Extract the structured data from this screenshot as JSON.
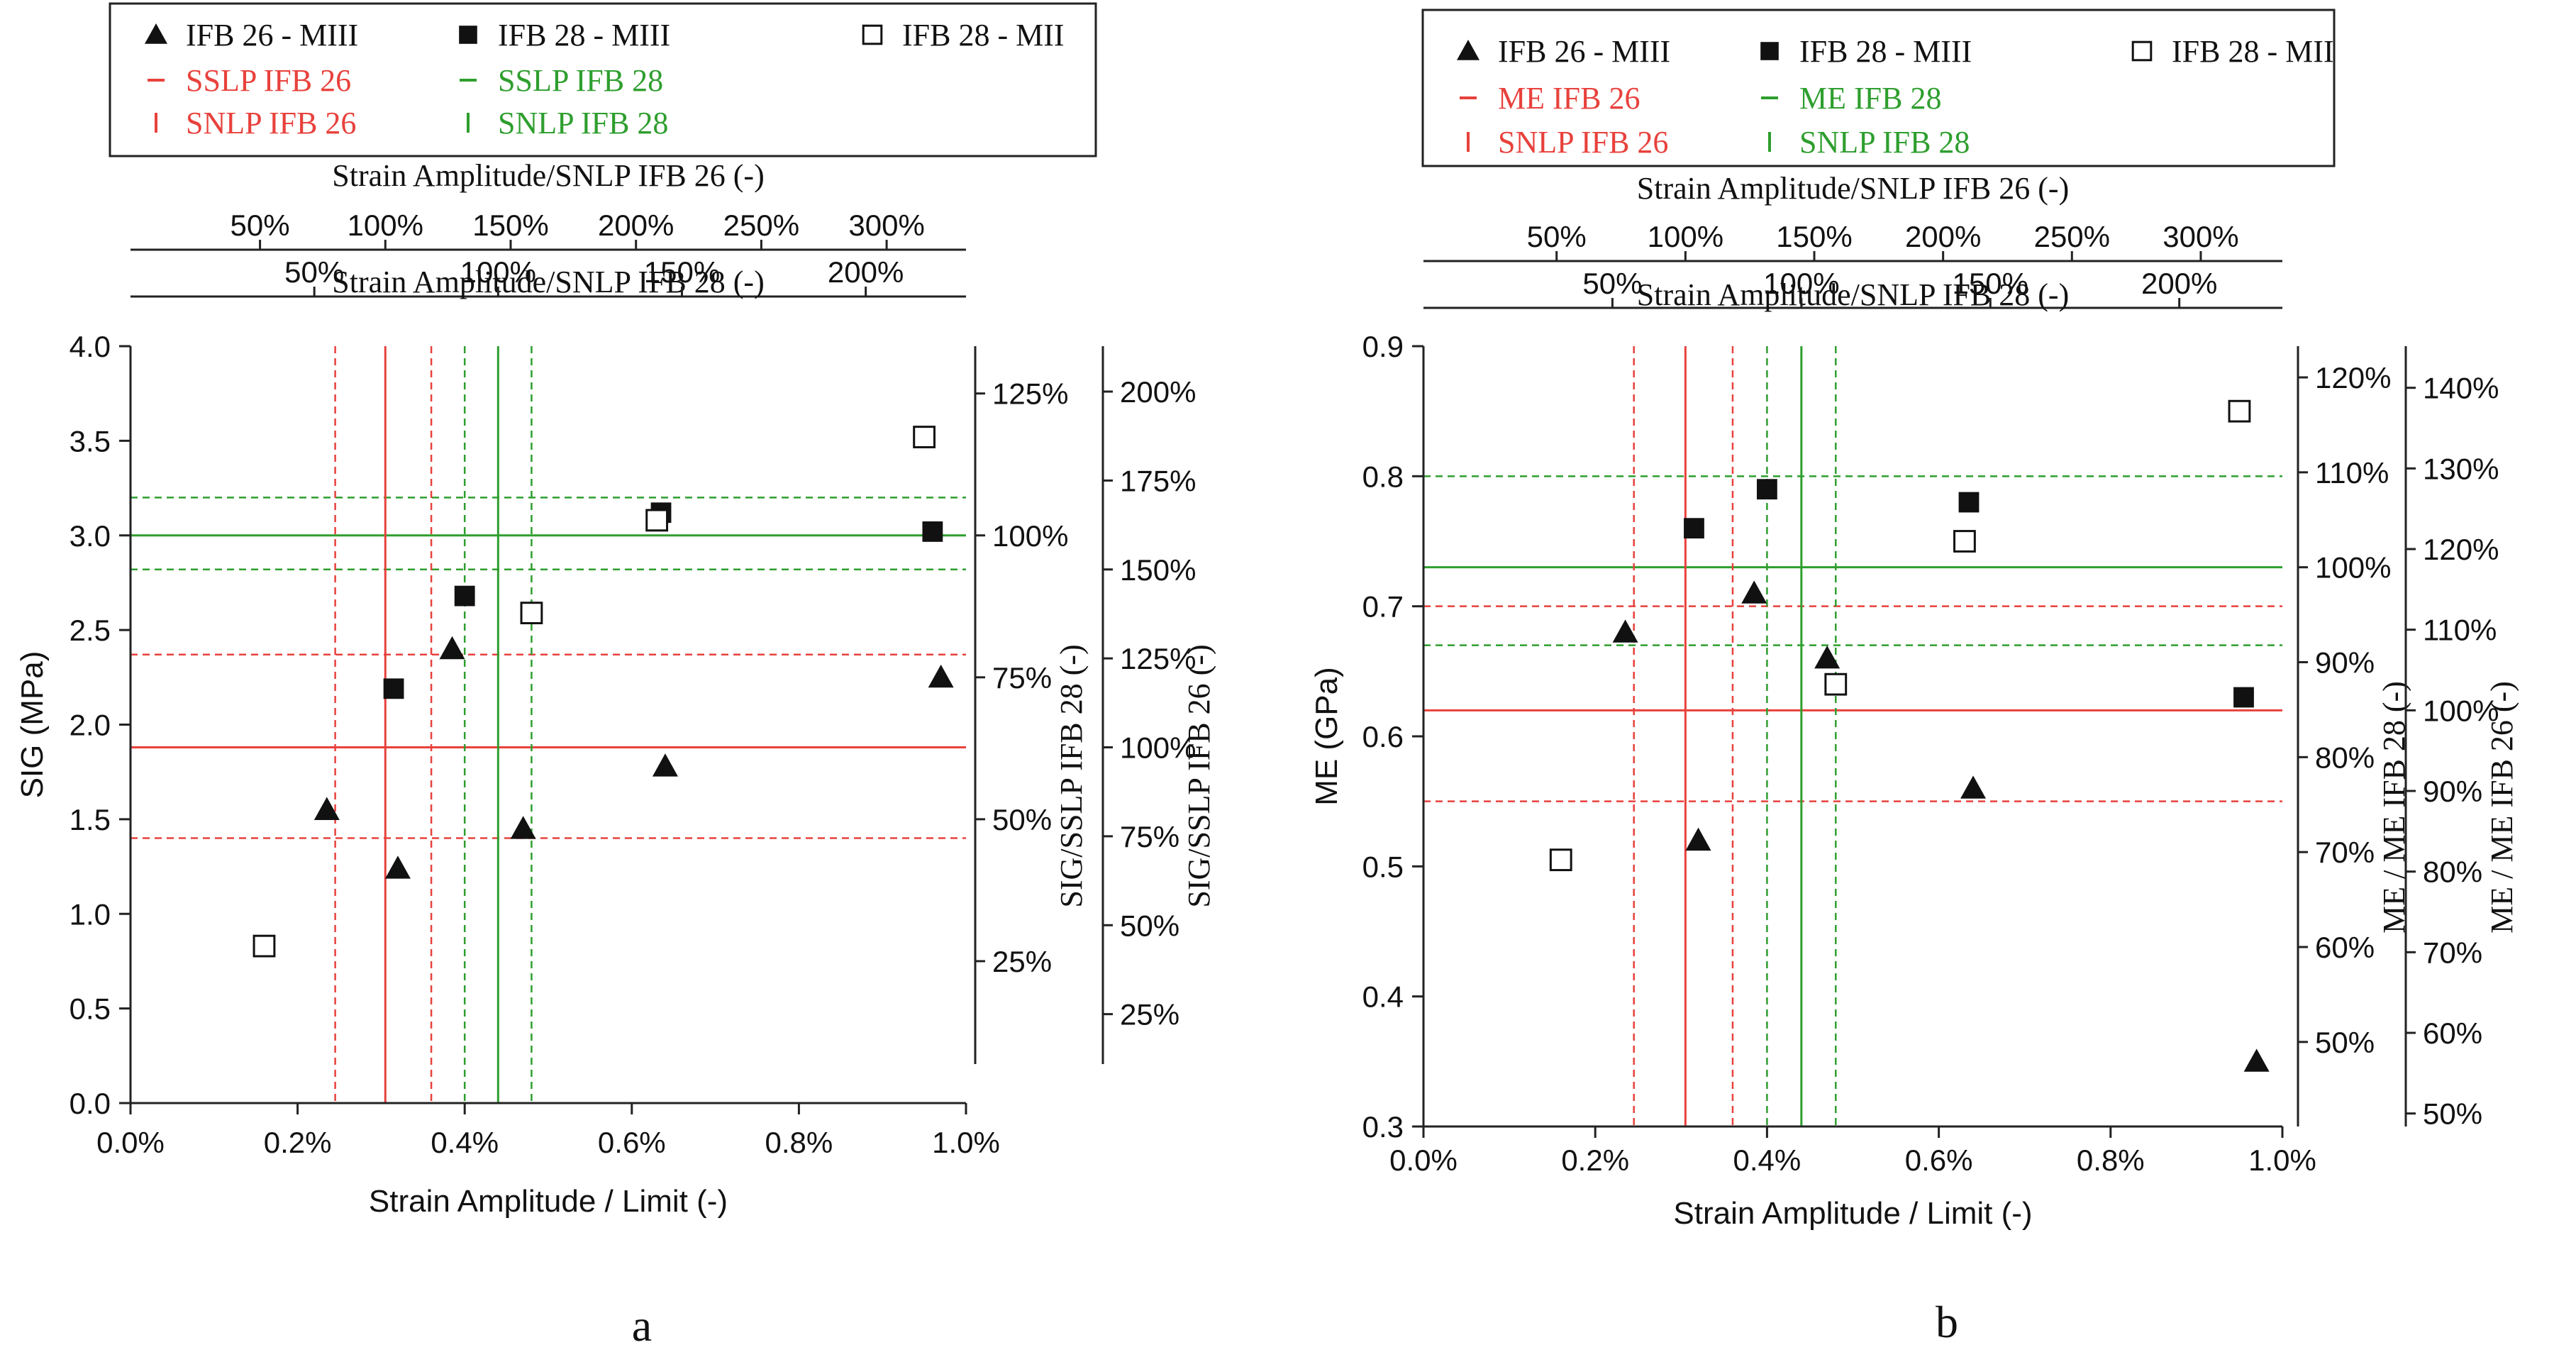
{
  "colors": {
    "red": "#e8413c",
    "green": "#2e9e2e",
    "black": "#111111"
  },
  "chart_data": [
    {
      "panel_label": "a",
      "type": "scatter",
      "xlabel": "Strain Amplitude / Limit (-)",
      "ylabel": "SIG (MPa)",
      "xlim": [
        0.0,
        1.0
      ],
      "ylim": [
        0.0,
        4.0
      ],
      "x_ticks": [
        "0.0%",
        "0.2%",
        "0.4%",
        "0.6%",
        "0.8%",
        "1.0%"
      ],
      "y_ticks": [
        "0.0",
        "0.5",
        "1.0",
        "1.5",
        "2.0",
        "2.5",
        "3.0",
        "3.5",
        "4.0"
      ],
      "top_axis_26": {
        "label": "Strain Amplitude/SNLP IFB 26 (-)",
        "ticks": [
          {
            "label": "50%",
            "x": 0.155
          },
          {
            "label": "100%",
            "x": 0.305
          },
          {
            "label": "150%",
            "x": 0.455
          },
          {
            "label": "200%",
            "x": 0.605
          },
          {
            "label": "250%",
            "x": 0.755
          },
          {
            "label": "300%",
            "x": 0.905
          }
        ]
      },
      "top_axis_28": {
        "label": "Strain Amplitude/SNLP IFB 28 (-)",
        "ticks": [
          {
            "label": "50%",
            "x": 0.22
          },
          {
            "label": "100%",
            "x": 0.44
          },
          {
            "label": "150%",
            "x": 0.66
          },
          {
            "label": "200%",
            "x": 0.88
          }
        ]
      },
      "right_axis_28": {
        "label": "SIG/SSLP IFB 28 (-)",
        "ticks": [
          {
            "label": "25%",
            "y": 0.75
          },
          {
            "label": "50%",
            "y": 1.5
          },
          {
            "label": "75%",
            "y": 2.25
          },
          {
            "label": "100%",
            "y": 3.0
          },
          {
            "label": "125%",
            "y": 3.75
          }
        ]
      },
      "right_axis_26": {
        "label": "SIG/SSLP IFB 26 (-)",
        "ticks": [
          {
            "label": "25%",
            "y": 0.47
          },
          {
            "label": "50%",
            "y": 0.94
          },
          {
            "label": "75%",
            "y": 1.41
          },
          {
            "label": "100%",
            "y": 1.88
          },
          {
            "label": "125%",
            "y": 2.35
          },
          {
            "label": "150%",
            "y": 2.82
          },
          {
            "label": "175%",
            "y": 3.29
          },
          {
            "label": "200%",
            "y": 3.76
          }
        ]
      },
      "legend": {
        "items": [
          {
            "label": "IFB 26 - MIII",
            "marker": "triangle",
            "color": "#111111"
          },
          {
            "label": "IFB 28 - MIII",
            "marker": "square-filled",
            "color": "#111111"
          },
          {
            "label": "IFB 28 - MII",
            "marker": "square-open",
            "color": "#111111"
          },
          {
            "label": "SSLP IFB 26",
            "marker": "hline",
            "color": "#e8413c"
          },
          {
            "label": "SSLP IFB 28",
            "marker": "hline",
            "color": "#2e9e2e"
          },
          {
            "label": "",
            "marker": "none",
            "color": "#111111"
          },
          {
            "label": "SNLP IFB 26",
            "marker": "vline",
            "color": "#e8413c"
          },
          {
            "label": "SNLP IFB 28",
            "marker": "vline",
            "color": "#2e9e2e"
          }
        ]
      },
      "series": [
        {
          "name": "IFB 26 - MIII",
          "marker": "triangle",
          "points": [
            [
              0.235,
              1.55
            ],
            [
              0.32,
              1.24
            ],
            [
              0.385,
              2.4
            ],
            [
              0.47,
              1.45
            ],
            [
              0.64,
              1.78
            ],
            [
              0.97,
              2.25
            ]
          ]
        },
        {
          "name": "IFB 28 - MIII",
          "marker": "square-filled",
          "points": [
            [
              0.315,
              2.19
            ],
            [
              0.4,
              2.68
            ],
            [
              0.635,
              3.12
            ],
            [
              0.96,
              3.02
            ]
          ]
        },
        {
          "name": "IFB 28 - MII",
          "marker": "square-open",
          "points": [
            [
              0.16,
              0.83
            ],
            [
              0.48,
              2.59
            ],
            [
              0.63,
              3.08
            ],
            [
              0.95,
              3.52
            ]
          ]
        }
      ],
      "ref_lines": [
        {
          "orient": "h",
          "value": 1.88,
          "color": "#e8413c",
          "style": "solid"
        },
        {
          "orient": "h",
          "value": 1.4,
          "color": "#e8413c",
          "style": "dashed"
        },
        {
          "orient": "h",
          "value": 2.37,
          "color": "#e8413c",
          "style": "dashed"
        },
        {
          "orient": "h",
          "value": 3.0,
          "color": "#2e9e2e",
          "style": "solid"
        },
        {
          "orient": "h",
          "value": 2.82,
          "color": "#2e9e2e",
          "style": "dashed"
        },
        {
          "orient": "h",
          "value": 3.2,
          "color": "#2e9e2e",
          "style": "dashed"
        },
        {
          "orient": "v",
          "value": 0.305,
          "color": "#e8413c",
          "style": "solid"
        },
        {
          "orient": "v",
          "value": 0.245,
          "color": "#e8413c",
          "style": "dashed"
        },
        {
          "orient": "v",
          "value": 0.36,
          "color": "#e8413c",
          "style": "dashed"
        },
        {
          "orient": "v",
          "value": 0.44,
          "color": "#2e9e2e",
          "style": "solid"
        },
        {
          "orient": "v",
          "value": 0.4,
          "color": "#2e9e2e",
          "style": "dashed"
        },
        {
          "orient": "v",
          "value": 0.48,
          "color": "#2e9e2e",
          "style": "dashed"
        }
      ]
    },
    {
      "panel_label": "b",
      "type": "scatter",
      "xlabel": "Strain Amplitude / Limit (-)",
      "ylabel": "ME (GPa)",
      "xlim": [
        0.0,
        1.0
      ],
      "ylim": [
        0.3,
        0.9
      ],
      "x_ticks": [
        "0.0%",
        "0.2%",
        "0.4%",
        "0.6%",
        "0.8%",
        "1.0%"
      ],
      "y_ticks": [
        "0.3",
        "0.4",
        "0.5",
        "0.6",
        "0.7",
        "0.8",
        "0.9"
      ],
      "top_axis_26": {
        "label": "Strain Amplitude/SNLP IFB 26 (-)",
        "ticks": [
          {
            "label": "50%",
            "x": 0.155
          },
          {
            "label": "100%",
            "x": 0.305
          },
          {
            "label": "150%",
            "x": 0.455
          },
          {
            "label": "200%",
            "x": 0.605
          },
          {
            "label": "250%",
            "x": 0.755
          },
          {
            "label": "300%",
            "x": 0.905
          }
        ]
      },
      "top_axis_28": {
        "label": "Strain Amplitude/SNLP IFB 28 (-)",
        "ticks": [
          {
            "label": "50%",
            "x": 0.22
          },
          {
            "label": "100%",
            "x": 0.44
          },
          {
            "label": "150%",
            "x": 0.66
          },
          {
            "label": "200%",
            "x": 0.88
          }
        ]
      },
      "right_axis_28": {
        "label": "ME / ME IFB 28 (-)",
        "ticks": [
          {
            "label": "50%",
            "y": 0.365
          },
          {
            "label": "60%",
            "y": 0.438
          },
          {
            "label": "70%",
            "y": 0.511
          },
          {
            "label": "80%",
            "y": 0.584
          },
          {
            "label": "90%",
            "y": 0.657
          },
          {
            "label": "100%",
            "y": 0.73
          },
          {
            "label": "110%",
            "y": 0.803
          },
          {
            "label": "120%",
            "y": 0.876
          }
        ]
      },
      "right_axis_26": {
        "label": "ME / ME IFB 26 (-)",
        "ticks": [
          {
            "label": "50%",
            "y": 0.31
          },
          {
            "label": "60%",
            "y": 0.372
          },
          {
            "label": "70%",
            "y": 0.434
          },
          {
            "label": "80%",
            "y": 0.496
          },
          {
            "label": "90%",
            "y": 0.558
          },
          {
            "label": "100%",
            "y": 0.62
          },
          {
            "label": "110%",
            "y": 0.682
          },
          {
            "label": "120%",
            "y": 0.744
          },
          {
            "label": "130%",
            "y": 0.806
          },
          {
            "label": "140%",
            "y": 0.868
          }
        ]
      },
      "legend": {
        "items": [
          {
            "label": "IFB 26 - MIII",
            "marker": "triangle",
            "color": "#111111"
          },
          {
            "label": "IFB 28 - MIII",
            "marker": "square-filled",
            "color": "#111111"
          },
          {
            "label": "IFB 28 - MII",
            "marker": "square-open",
            "color": "#111111"
          },
          {
            "label": "ME IFB 26",
            "marker": "hline",
            "color": "#e8413c"
          },
          {
            "label": "ME IFB 28",
            "marker": "hline",
            "color": "#2e9e2e"
          },
          {
            "label": "",
            "marker": "none",
            "color": "#111111"
          },
          {
            "label": "SNLP IFB 26",
            "marker": "vline",
            "color": "#e8413c"
          },
          {
            "label": "SNLP IFB 28",
            "marker": "vline",
            "color": "#2e9e2e"
          }
        ]
      },
      "series": [
        {
          "name": "IFB 26 - MIII",
          "marker": "triangle",
          "points": [
            [
              0.235,
              0.68
            ],
            [
              0.32,
              0.52
            ],
            [
              0.385,
              0.71
            ],
            [
              0.47,
              0.66
            ],
            [
              0.64,
              0.56
            ],
            [
              0.97,
              0.35
            ]
          ]
        },
        {
          "name": "IFB 28 - MIII",
          "marker": "square-filled",
          "points": [
            [
              0.315,
              0.76
            ],
            [
              0.4,
              0.79
            ],
            [
              0.635,
              0.78
            ],
            [
              0.955,
              0.63
            ]
          ]
        },
        {
          "name": "IFB 28 - MII",
          "marker": "square-open",
          "points": [
            [
              0.16,
              0.505
            ],
            [
              0.48,
              0.64
            ],
            [
              0.63,
              0.75
            ],
            [
              0.95,
              0.85
            ]
          ]
        }
      ],
      "ref_lines": [
        {
          "orient": "h",
          "value": 0.62,
          "color": "#e8413c",
          "style": "solid"
        },
        {
          "orient": "h",
          "value": 0.55,
          "color": "#e8413c",
          "style": "dashed"
        },
        {
          "orient": "h",
          "value": 0.7,
          "color": "#e8413c",
          "style": "dashed"
        },
        {
          "orient": "h",
          "value": 0.73,
          "color": "#2e9e2e",
          "style": "solid"
        },
        {
          "orient": "h",
          "value": 0.67,
          "color": "#2e9e2e",
          "style": "dashed"
        },
        {
          "orient": "h",
          "value": 0.8,
          "color": "#2e9e2e",
          "style": "dashed"
        },
        {
          "orient": "v",
          "value": 0.305,
          "color": "#e8413c",
          "style": "solid"
        },
        {
          "orient": "v",
          "value": 0.245,
          "color": "#e8413c",
          "style": "dashed"
        },
        {
          "orient": "v",
          "value": 0.36,
          "color": "#e8413c",
          "style": "dashed"
        },
        {
          "orient": "v",
          "value": 0.44,
          "color": "#2e9e2e",
          "style": "solid"
        },
        {
          "orient": "v",
          "value": 0.4,
          "color": "#2e9e2e",
          "style": "dashed"
        },
        {
          "orient": "v",
          "value": 0.48,
          "color": "#2e9e2e",
          "style": "dashed"
        }
      ]
    }
  ]
}
